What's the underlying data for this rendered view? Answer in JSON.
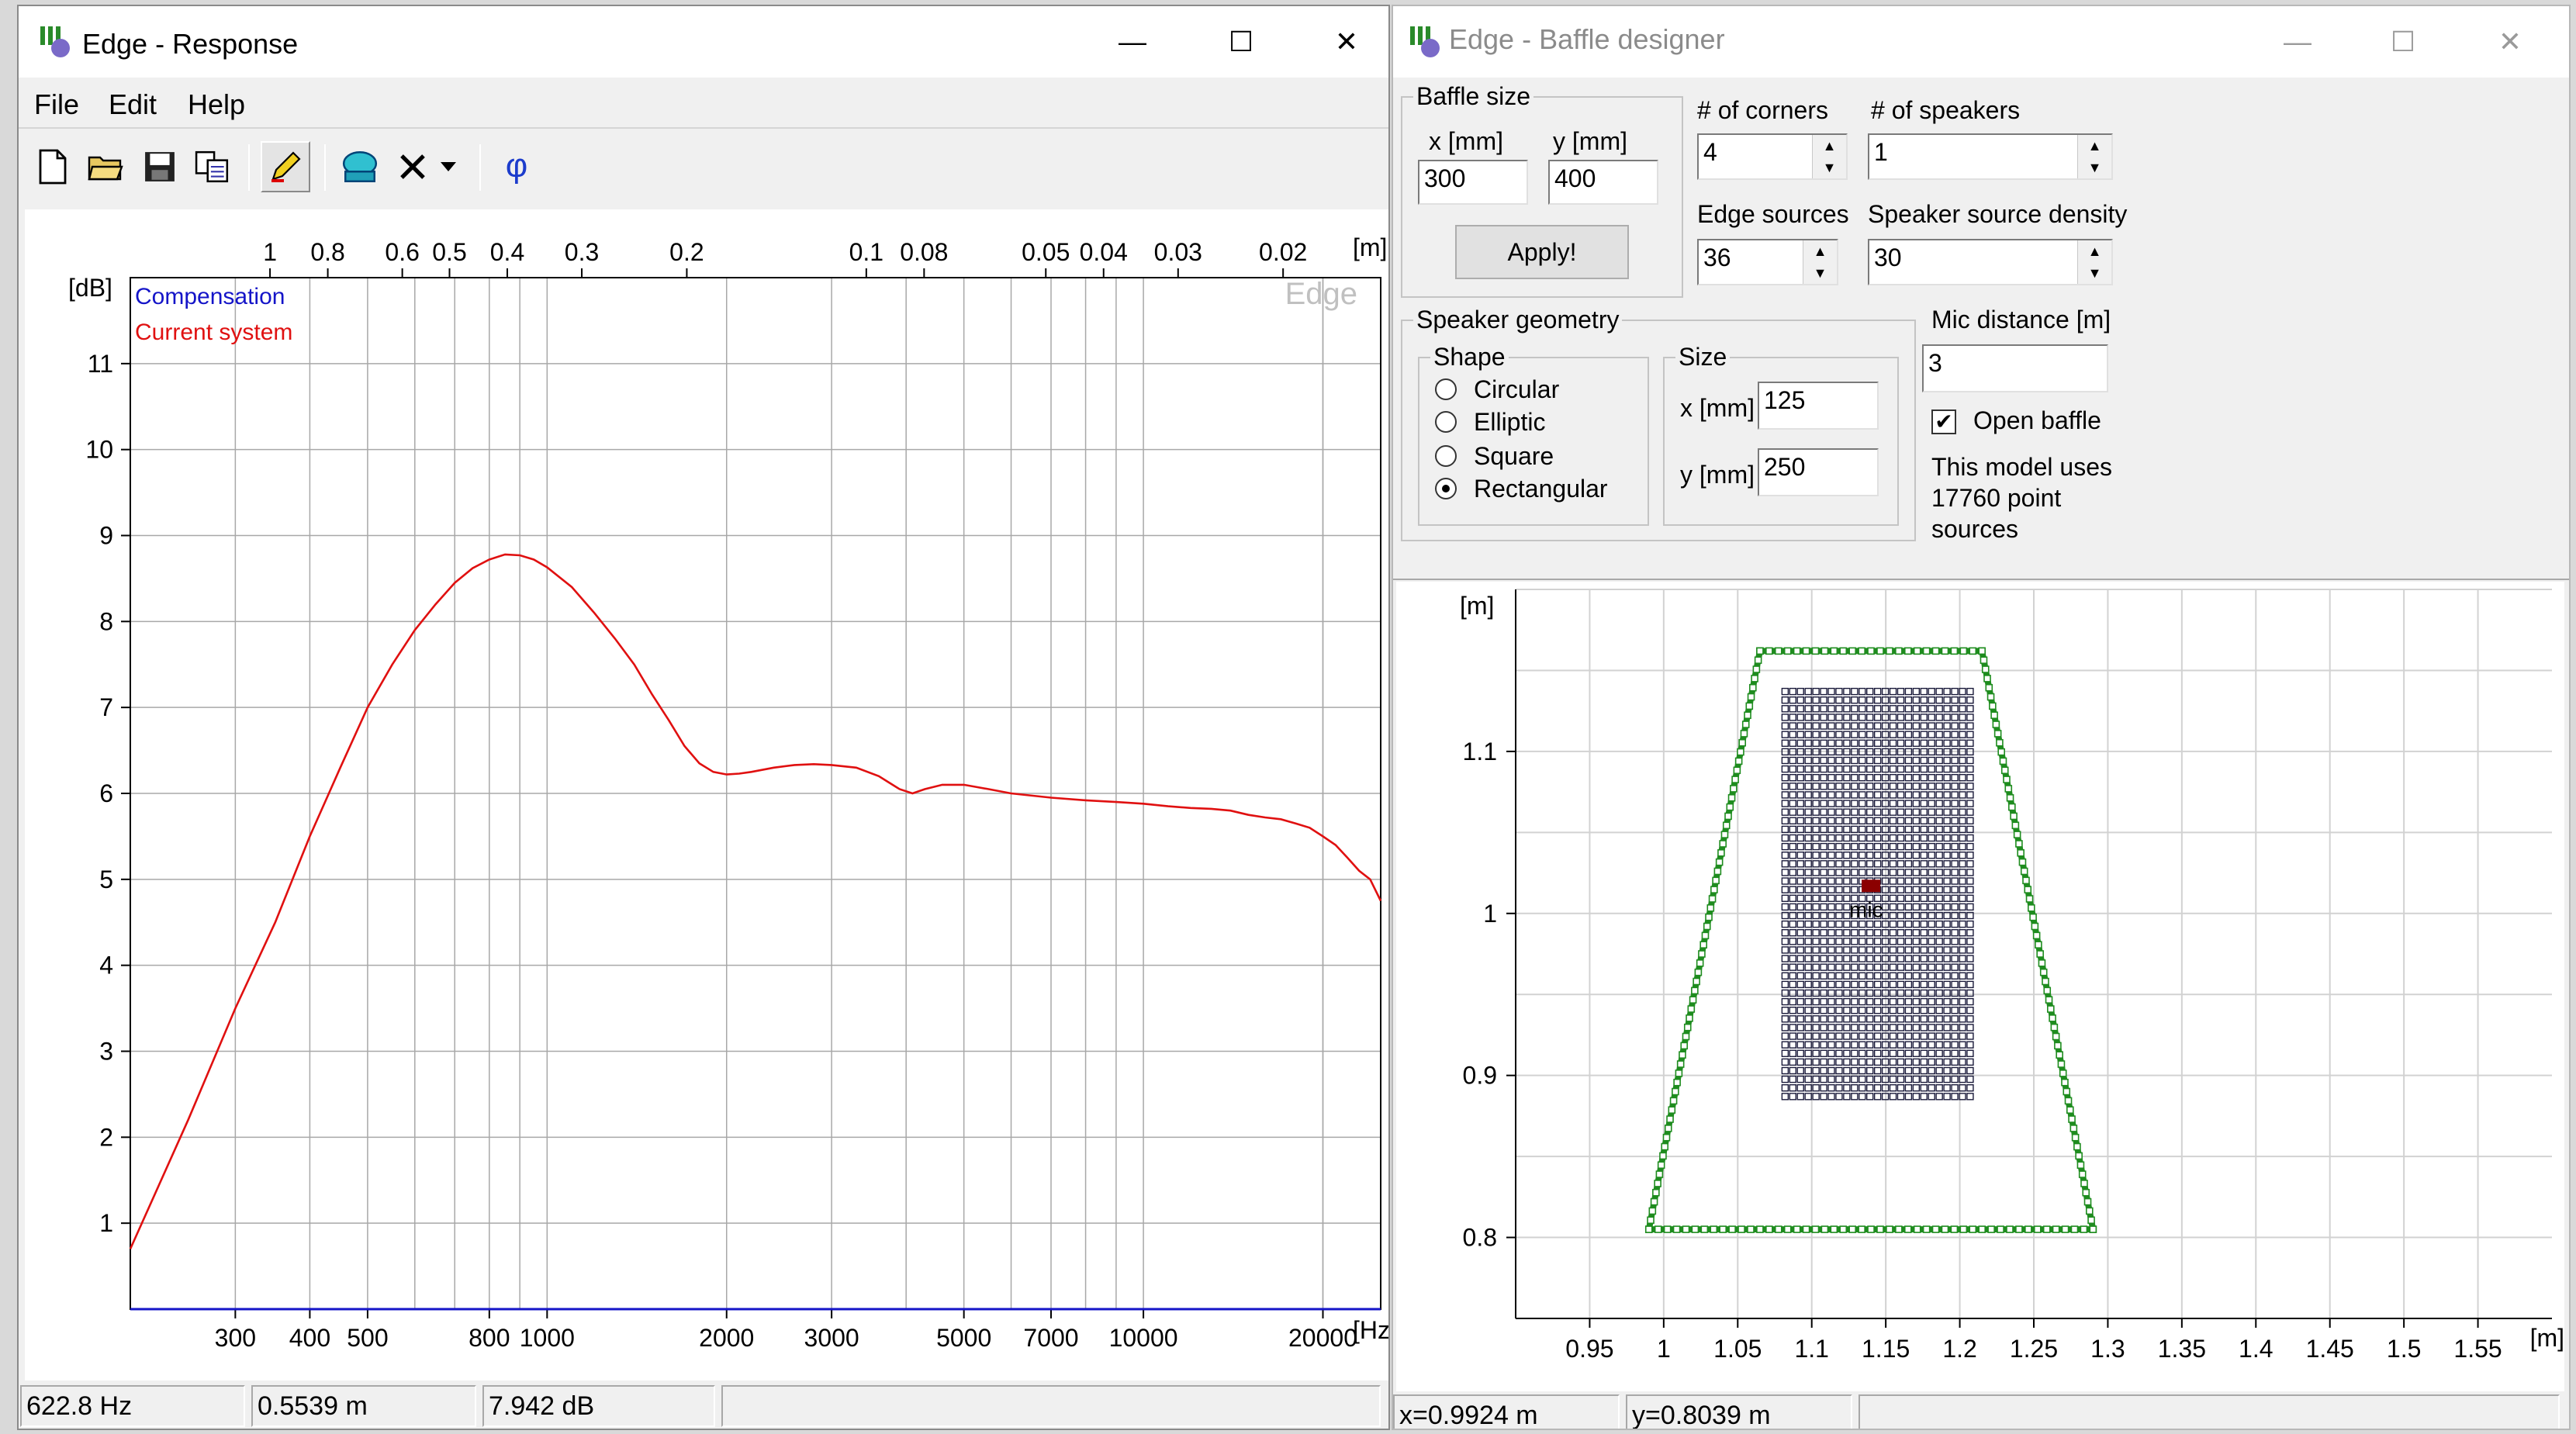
{
  "response_window": {
    "title": "Edge - Response",
    "menu": [
      "File",
      "Edit",
      "Help"
    ],
    "toolbar_icons": [
      "new-file-icon",
      "open-folder-icon",
      "save-icon",
      "copy-icon",
      "pencil-icon",
      "speaker-icon",
      "delete-x-icon",
      "dropdown-arrow-icon",
      "phase-icon"
    ],
    "status": {
      "frequency": "622.8 Hz",
      "distance": "0.5539 m",
      "level": "7.942 dB",
      "extra": ""
    }
  },
  "response_chart": {
    "type": "line",
    "xscale": "log",
    "xlim": [
      200,
      25000
    ],
    "ylim": [
      0,
      12
    ],
    "xlabel": "[Hz]",
    "ylabel": "[dB]",
    "top_axis_label": "[m]",
    "watermark": "Edge",
    "x_ticks": [
      "300",
      "400",
      "500",
      "800",
      "1000",
      "2000",
      "3000",
      "5000",
      "7000",
      "10000",
      "20000"
    ],
    "x_tick_values": [
      300,
      400,
      500,
      800,
      1000,
      2000,
      3000,
      5000,
      7000,
      10000,
      20000
    ],
    "y_ticks": [
      "1",
      "2",
      "3",
      "4",
      "5",
      "6",
      "7",
      "8",
      "9",
      "10",
      "11"
    ],
    "y_tick_values": [
      1,
      2,
      3,
      4,
      5,
      6,
      7,
      8,
      9,
      10,
      11
    ],
    "top_ticks": [
      "1",
      "0.8",
      "0.6",
      "0.5",
      "0.4",
      "0.3",
      "0.2",
      "0.1",
      "0.08",
      "0.05",
      "0.04",
      "0.03",
      "0.02"
    ],
    "top_tick_values": [
      1,
      0.8,
      0.6,
      0.5,
      0.4,
      0.3,
      0.2,
      0.1,
      0.08,
      0.05,
      0.04,
      0.03,
      0.02
    ],
    "colors": {
      "compensation": "#1414c8",
      "current": "#e01010",
      "grid": "#a8a8a8"
    },
    "series": [
      {
        "name": "Compensation",
        "x": [
          200,
          25000
        ],
        "y": [
          0,
          0
        ]
      },
      {
        "name": "Current system",
        "x": [
          200,
          250,
          300,
          350,
          400,
          450,
          500,
          550,
          600,
          650,
          700,
          750,
          800,
          850,
          900,
          950,
          1000,
          1100,
          1200,
          1300,
          1400,
          1500,
          1600,
          1700,
          1800,
          1900,
          2000,
          2100,
          2200,
          2400,
          2600,
          2800,
          3000,
          3300,
          3600,
          3900,
          4100,
          4300,
          4600,
          5000,
          5500,
          6000,
          7000,
          8000,
          9000,
          10000,
          11000,
          12000,
          13000,
          14000,
          15000,
          16000,
          17000,
          18000,
          19000,
          20000,
          21000,
          22000,
          23000,
          24000,
          25000
        ],
        "y": [
          0.7,
          2.2,
          3.5,
          4.5,
          5.5,
          6.3,
          7.0,
          7.5,
          7.9,
          8.2,
          8.45,
          8.62,
          8.72,
          8.78,
          8.77,
          8.72,
          8.63,
          8.4,
          8.1,
          7.8,
          7.5,
          7.15,
          6.85,
          6.55,
          6.35,
          6.25,
          6.22,
          6.23,
          6.25,
          6.3,
          6.33,
          6.34,
          6.33,
          6.3,
          6.2,
          6.05,
          6.0,
          6.05,
          6.1,
          6.1,
          6.05,
          6.0,
          5.95,
          5.92,
          5.9,
          5.88,
          5.85,
          5.83,
          5.82,
          5.8,
          5.75,
          5.72,
          5.7,
          5.65,
          5.6,
          5.5,
          5.4,
          5.25,
          5.1,
          5.0,
          4.75
        ]
      }
    ]
  },
  "baffle_window": {
    "title": "Edge - Baffle designer",
    "baffle_size": {
      "label": "Baffle size",
      "x_label": "x [mm]",
      "y_label": "y [mm]",
      "x_value": "300",
      "y_value": "400",
      "apply": "Apply!"
    },
    "corners": {
      "label": "# of corners",
      "value": "4"
    },
    "speakers": {
      "label": "# of speakers",
      "value": "1"
    },
    "edge_sources": {
      "label": "Edge sources",
      "value": "36"
    },
    "speaker_density": {
      "label": "Speaker source density",
      "value": "30"
    },
    "speaker_geometry": {
      "label": "Speaker geometry",
      "shape_label": "Shape",
      "shapes": [
        "Circular",
        "Elliptic",
        "Square",
        "Rectangular"
      ],
      "selected": "Rectangular",
      "size_label": "Size",
      "x_label": "x [mm]",
      "x_value": "125",
      "y_label": "y [mm]",
      "y_value": "250"
    },
    "mic_distance": {
      "label": "Mic distance [m]",
      "value": "3"
    },
    "open_baffle": {
      "label": "Open baffle",
      "checked": true
    },
    "model_info": [
      "This model uses",
      "17760 point",
      "sources"
    ],
    "status": {
      "x": "x=0.9924 m",
      "y": "y=0.8039 m",
      "extra": ""
    }
  },
  "baffle_plot": {
    "unit_label": "[m]",
    "xlim": [
      0.9,
      1.6
    ],
    "ylim": [
      0.75,
      1.2
    ],
    "x_ticks": [
      "0.95",
      "1",
      "1.05",
      "1.1",
      "1.15",
      "1.2",
      "1.25",
      "1.3",
      "1.35",
      "1.4",
      "1.45",
      "1.5",
      "1.55"
    ],
    "x_tick_values": [
      0.95,
      1,
      1.05,
      1.1,
      1.15,
      1.2,
      1.25,
      1.3,
      1.35,
      1.4,
      1.45,
      1.5,
      1.55
    ],
    "y_ticks": [
      "0.8",
      "0.9",
      "1",
      "1.1"
    ],
    "y_tick_values": [
      0.8,
      0.9,
      1.0,
      1.1
    ],
    "baffle_outline": [
      [
        0.99,
        0.805
      ],
      [
        1.29,
        0.805
      ],
      [
        1.215,
        1.162
      ],
      [
        1.065,
        1.162
      ]
    ],
    "speaker_rect": {
      "x0": 1.082,
      "x1": 1.207,
      "y0": 0.887,
      "y1": 1.137
    },
    "mic": {
      "x": 1.14,
      "y": 1.017,
      "label": "mic"
    },
    "colors": {
      "baffle": "#1e8c1e",
      "speaker": "#1a1a3a",
      "mic": "#8b0000"
    }
  }
}
